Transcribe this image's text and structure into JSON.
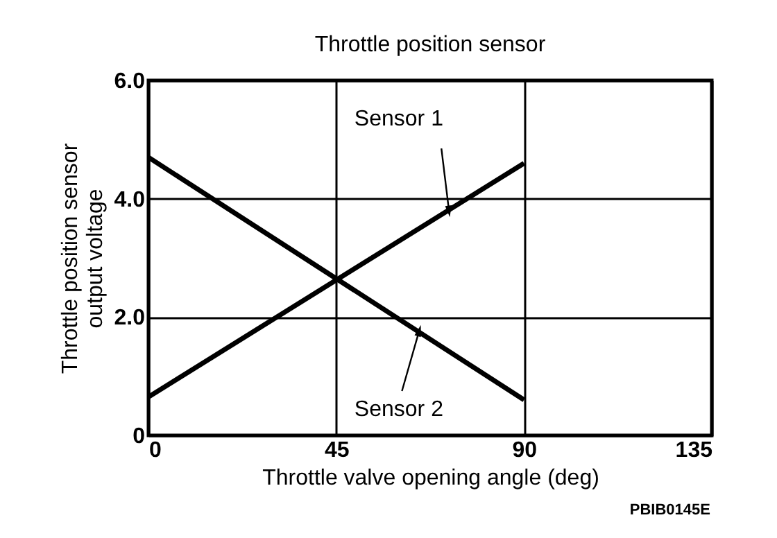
{
  "chart_data": {
    "type": "line",
    "title": "Throttle position sensor",
    "xlabel": "Throttle valve opening angle (deg)",
    "ylabel": "Throttle position sensor output voltage",
    "x": [
      0,
      90
    ],
    "series": [
      {
        "name": "Sensor 1",
        "color": "#000000",
        "values": [
          0.65,
          4.6
        ]
      },
      {
        "name": "Sensor 2",
        "color": "#000000",
        "values": [
          4.7,
          0.6
        ]
      }
    ],
    "xlim": [
      0,
      135
    ],
    "xticks": [
      0,
      45,
      90,
      135
    ],
    "ylim": [
      0,
      6
    ],
    "yticks": [
      0,
      {
        "value": 2,
        "label": "2.0"
      },
      {
        "value": 4,
        "label": "4.0"
      },
      {
        "value": 6,
        "label": "6.0"
      }
    ],
    "grid": true,
    "annotations": [
      "PBIB0145E"
    ]
  }
}
